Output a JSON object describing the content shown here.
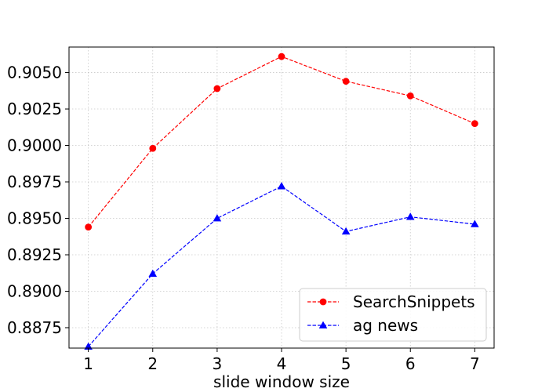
{
  "chart_data": {
    "type": "line",
    "xlabel": "slide window size",
    "ylabel": "",
    "title": "",
    "x": [
      1,
      2,
      3,
      4,
      5,
      6,
      7
    ],
    "xticks": [
      "1",
      "2",
      "3",
      "4",
      "5",
      "6",
      "7"
    ],
    "yticks": [
      "0.8875",
      "0.8900",
      "0.8925",
      "0.8950",
      "0.8975",
      "0.9000",
      "0.9025",
      "0.9050"
    ],
    "xlim": [
      0.7,
      7.3
    ],
    "ylim": [
      0.8861,
      0.90675
    ],
    "grid": true,
    "legend_position": "lower-right",
    "series": [
      {
        "name": "SearchSnippets",
        "color": "#ff0000",
        "marker": "circle",
        "line_style": "dashed",
        "values": [
          0.8944,
          0.8998,
          0.9039,
          0.9061,
          0.9044,
          0.9034,
          0.9015
        ]
      },
      {
        "name": "ag news",
        "color": "#0000ff",
        "marker": "triangle",
        "line_style": "dashed",
        "values": [
          0.8862,
          0.8912,
          0.895,
          0.8972,
          0.8941,
          0.8951,
          0.8946
        ]
      }
    ]
  }
}
